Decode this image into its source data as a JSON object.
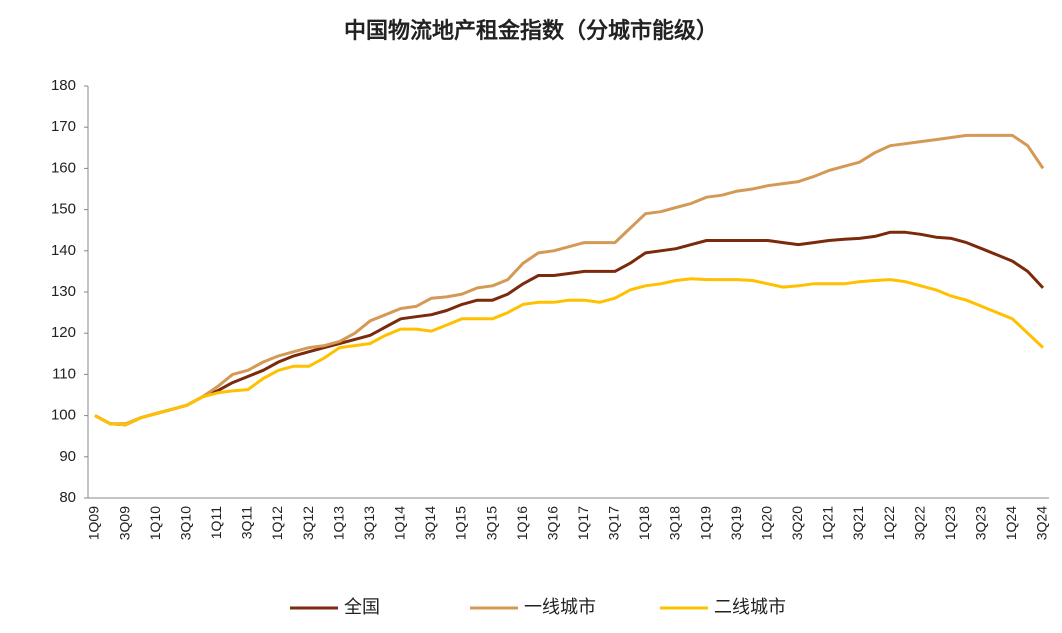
{
  "chart_data": {
    "type": "line",
    "title": "中国物流地产租金指数（分城市能级）",
    "categories": [
      "1Q09",
      null,
      "3Q09",
      null,
      "1Q10",
      null,
      "3Q10",
      null,
      "1Q11",
      null,
      "3Q11",
      null,
      "1Q12",
      null,
      "3Q12",
      null,
      "1Q13",
      null,
      "3Q13",
      null,
      "1Q14",
      null,
      "3Q14",
      null,
      "1Q15",
      null,
      "3Q15",
      null,
      "1Q16",
      null,
      "3Q16",
      null,
      "1Q17",
      null,
      "3Q17",
      null,
      "1Q18",
      null,
      "3Q18",
      null,
      "1Q19",
      null,
      "3Q19",
      null,
      "1Q20",
      null,
      "3Q20",
      null,
      "1Q21",
      null,
      "3Q21",
      null,
      "1Q22",
      null,
      "3Q22",
      null,
      "1Q23",
      null,
      "3Q23",
      null,
      "1Q24",
      null,
      "3Q24"
    ],
    "series": [
      {
        "name": "全国",
        "color": "#7b2a0c",
        "values": [
          100,
          98,
          97.8,
          99.5,
          100.5,
          101.5,
          102.5,
          104.5,
          106,
          108,
          109.5,
          111,
          113,
          114.5,
          115.5,
          116.5,
          117.5,
          118.5,
          119.5,
          121.5,
          123.5,
          124,
          124.5,
          125.5,
          127,
          128,
          128,
          129.5,
          132,
          134,
          134,
          134.5,
          135,
          135,
          135,
          137,
          139.5,
          140,
          140.5,
          141.5,
          142.5,
          142.5,
          142.5,
          142.5,
          142.5,
          142,
          141.5,
          142,
          142.5,
          142.8,
          143,
          143.5,
          144.5,
          144.5,
          144,
          143.3,
          143,
          142,
          140.5,
          139,
          137.5,
          135,
          131
        ]
      },
      {
        "name": "一线城市",
        "color": "#d49a55",
        "values": [
          100,
          98,
          98,
          99.5,
          100.5,
          101.5,
          102.5,
          104.5,
          107,
          110,
          111,
          113,
          114.5,
          115.5,
          116.5,
          117,
          118,
          120,
          123,
          124.5,
          126,
          126.5,
          128.5,
          128.8,
          129.5,
          131,
          131.5,
          133,
          137,
          139.5,
          140,
          141,
          142,
          142,
          142,
          145.5,
          149,
          149.5,
          150.5,
          151.5,
          153,
          153.5,
          154.5,
          155,
          155.8,
          156.3,
          156.8,
          158,
          159.5,
          160.5,
          161.5,
          163.8,
          165.5,
          166,
          166.5,
          167,
          167.5,
          168,
          168,
          168,
          168,
          165.5,
          160
        ]
      },
      {
        "name": "二线城市",
        "color": "#ffc000",
        "values": [
          100,
          98,
          97.8,
          99.5,
          100.5,
          101.5,
          102.5,
          104.5,
          105.5,
          106,
          106.3,
          109,
          111,
          112,
          112,
          114,
          116.5,
          117,
          117.5,
          119.5,
          121,
          121,
          120.5,
          122,
          123.5,
          123.5,
          123.5,
          125,
          127,
          127.5,
          127.5,
          128,
          128,
          127.5,
          128.5,
          130.5,
          131.5,
          132,
          132.8,
          133.2,
          133,
          133,
          133,
          132.8,
          132,
          131.2,
          131.5,
          132,
          132,
          132,
          132.5,
          132.8,
          133,
          132.5,
          131.5,
          130.5,
          129,
          128,
          126.5,
          125,
          123.5,
          120,
          116.5
        ]
      }
    ],
    "ylim": [
      80,
      180
    ],
    "yticks": [
      80,
      90,
      100,
      110,
      120,
      130,
      140,
      150,
      160,
      170,
      180
    ],
    "legend": "bottom"
  }
}
